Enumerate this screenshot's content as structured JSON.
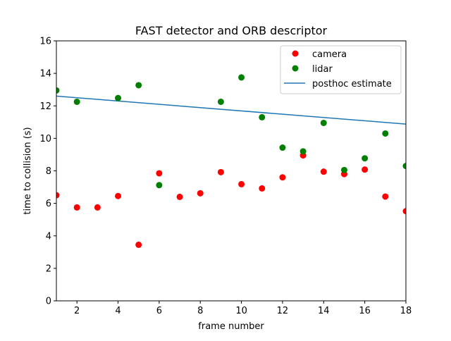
{
  "chart_data": {
    "type": "scatter",
    "title": "FAST detector and ORB descriptor",
    "xlabel": "frame number",
    "ylabel": "time to collision (s)",
    "xlim": [
      1,
      18
    ],
    "ylim": [
      0,
      16
    ],
    "xticks": [
      2,
      4,
      6,
      8,
      10,
      12,
      14,
      16,
      18
    ],
    "yticks": [
      0,
      2,
      4,
      6,
      8,
      10,
      12,
      14,
      16
    ],
    "grid": false,
    "legend_position": "top-right",
    "series": [
      {
        "name": "camera",
        "kind": "scatter",
        "color": "#ff0000",
        "x": [
          1,
          2,
          3,
          4,
          5,
          6,
          7,
          8,
          9,
          10,
          11,
          12,
          13,
          14,
          15,
          16,
          17,
          18
        ],
        "y": [
          6.5,
          5.75,
          5.75,
          6.45,
          3.45,
          7.85,
          6.4,
          6.62,
          7.92,
          7.18,
          6.92,
          7.6,
          8.95,
          7.95,
          7.8,
          8.08,
          6.42,
          5.52
        ]
      },
      {
        "name": "lidar",
        "kind": "scatter",
        "color": "#008000",
        "x": [
          1,
          2,
          4,
          5,
          6,
          9,
          10,
          11,
          12,
          13,
          14,
          15,
          16,
          17,
          18
        ],
        "y": [
          12.95,
          12.25,
          12.48,
          13.27,
          7.12,
          12.25,
          13.75,
          11.3,
          9.43,
          9.2,
          10.95,
          8.05,
          8.77,
          10.3,
          8.3
        ]
      },
      {
        "name": "posthoc estimate",
        "kind": "line",
        "color": "#1f77b4",
        "x": [
          1,
          18
        ],
        "y": [
          12.6,
          10.88
        ]
      }
    ]
  }
}
